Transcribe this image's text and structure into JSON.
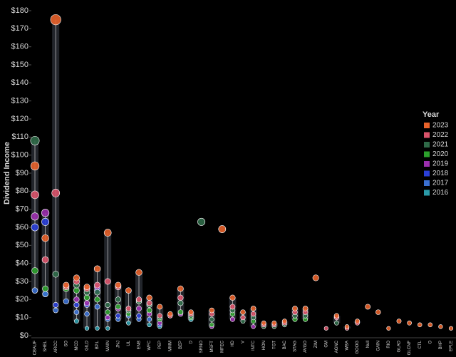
{
  "chart_data": {
    "type": "dot-range",
    "y_label": "Dividend Income",
    "legend_title": "Year",
    "legend_position": "right",
    "categories": [
      "CBAUF",
      "SHEL",
      "ARCC",
      "SO",
      "MCD",
      "GILD",
      "BP.L",
      "MAIN",
      "JNJ",
      "UL",
      "ENB",
      "WFC",
      "PEP",
      "MMM",
      "BEP",
      "D",
      "SRNO",
      "MSFT",
      "MFEC",
      "HD",
      "V",
      "INTC",
      "HON",
      "TGT",
      "BAC",
      "STAG",
      "AVGO",
      "ZIM",
      "GM",
      "AGNC",
      "WBA",
      "GOOG",
      "Null",
      "GAIN",
      "RIO",
      "GLAD",
      "GLCNF",
      "CTL",
      "O",
      "BHP",
      "EPLE"
    ],
    "series": [
      {
        "name": "2023",
        "color": "#e8622a",
        "values": [
          94,
          54,
          175,
          28,
          32,
          27,
          37,
          57,
          28,
          25,
          35,
          21,
          16,
          12,
          26,
          13,
          null,
          14,
          59,
          21,
          13,
          15,
          7,
          7,
          8,
          15,
          15,
          32,
          null,
          11,
          5,
          8,
          16,
          13,
          4,
          8,
          7,
          6,
          6,
          5,
          4
        ]
      },
      {
        "name": "2022",
        "color": "#d9536a",
        "values": [
          78,
          42,
          79,
          27,
          30,
          26,
          28,
          30,
          27,
          15,
          20,
          18,
          11,
          11,
          21,
          12,
          null,
          12,
          null,
          16,
          10,
          12,
          6,
          6,
          7,
          13,
          13,
          null,
          4,
          10,
          4,
          7,
          null,
          null,
          null,
          null,
          null,
          null,
          null,
          null,
          null
        ]
      },
      {
        "name": "2021",
        "color": "#2f6a48",
        "values": [
          108,
          null,
          34,
          null,
          28,
          24,
          24,
          17,
          20,
          14,
          19,
          17,
          10,
          null,
          18,
          11,
          63,
          9,
          null,
          14,
          8,
          10,
          5,
          5,
          6,
          11,
          11,
          null,
          null,
          7,
          null,
          null,
          null,
          null,
          null,
          null,
          null,
          null,
          null,
          null,
          null
        ]
      },
      {
        "name": "2020",
        "color": "#2ca02c",
        "values": [
          36,
          26,
          null,
          26,
          25,
          21,
          20,
          13,
          16,
          12,
          19,
          14,
          9,
          null,
          13,
          10,
          null,
          6,
          null,
          12,
          null,
          8,
          null,
          null,
          null,
          9,
          9,
          null,
          null,
          null,
          null,
          null,
          null,
          null,
          null,
          null,
          null,
          null,
          null,
          null,
          null
        ]
      },
      {
        "name": "2019",
        "color": "#9b2fae",
        "values": [
          66,
          68,
          null,
          null,
          20,
          18,
          27,
          10,
          15,
          null,
          15,
          12,
          7,
          null,
          12,
          null,
          null,
          5,
          null,
          9,
          null,
          5,
          null,
          null,
          null,
          null,
          null,
          null,
          null,
          null,
          null,
          null,
          null,
          null,
          null,
          null,
          null,
          null,
          null,
          null,
          null
        ]
      },
      {
        "name": "2018",
        "color": "#2a3fd8",
        "values": [
          60,
          63,
          17,
          27,
          17,
          17,
          25,
          10,
          11,
          null,
          11,
          null,
          6,
          null,
          null,
          null,
          null,
          null,
          null,
          null,
          null,
          null,
          null,
          null,
          null,
          null,
          null,
          null,
          null,
          null,
          null,
          null,
          null,
          null,
          null,
          null,
          null,
          null,
          null,
          null,
          null
        ]
      },
      {
        "name": "2017",
        "color": "#3a6fd0",
        "values": [
          25,
          23,
          14,
          19,
          13,
          12,
          16,
          9,
          9,
          11,
          9,
          9,
          null,
          null,
          null,
          null,
          null,
          null,
          null,
          null,
          null,
          null,
          null,
          null,
          null,
          null,
          null,
          null,
          null,
          null,
          null,
          null,
          null,
          null,
          null,
          null,
          null,
          null,
          null,
          null,
          null
        ]
      },
      {
        "name": "2016",
        "color": "#2a9aa8",
        "values": [
          null,
          23,
          null,
          null,
          8,
          4,
          4,
          4,
          null,
          7,
          null,
          6,
          5,
          null,
          null,
          9,
          null,
          null,
          null,
          null,
          null,
          null,
          null,
          null,
          null,
          null,
          null,
          null,
          null,
          null,
          null,
          null,
          null,
          null,
          null,
          null,
          null,
          null,
          null,
          null,
          null
        ]
      }
    ],
    "ylim": [
      0,
      180
    ],
    "yticks": [
      {
        "value": 0,
        "label": "$0"
      },
      {
        "value": 10,
        "label": "$10"
      },
      {
        "value": 20,
        "label": "$20"
      },
      {
        "value": 30,
        "label": "$30"
      },
      {
        "value": 40,
        "label": "$40"
      },
      {
        "value": 50,
        "label": "$50"
      },
      {
        "value": 60,
        "label": "$60"
      },
      {
        "value": 70,
        "label": "$70"
      },
      {
        "value": 80,
        "label": "$80"
      },
      {
        "value": 90,
        "label": "$90"
      },
      {
        "value": 100,
        "label": "$100"
      },
      {
        "value": 110,
        "label": "$110"
      },
      {
        "value": 120,
        "label": "$120"
      },
      {
        "value": 130,
        "label": "$130"
      },
      {
        "value": 140,
        "label": "$140"
      },
      {
        "value": 150,
        "label": "$150"
      },
      {
        "value": 160,
        "label": "$160"
      },
      {
        "value": 170,
        "label": "$170"
      },
      {
        "value": 180,
        "label": "$180"
      }
    ]
  }
}
